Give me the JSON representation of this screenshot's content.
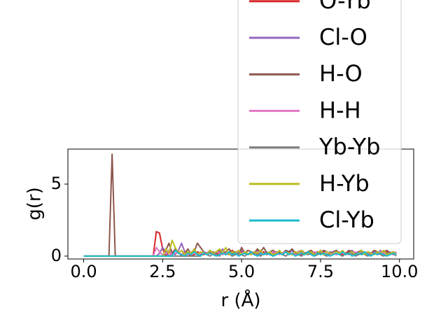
{
  "chart_data": {
    "type": "line",
    "xlabel": "r (Å)",
    "ylabel": "g(r)",
    "xlim": [
      -0.5,
      10.45
    ],
    "ylim": [
      -0.2,
      7.43
    ],
    "xticks": [
      {
        "value": 0,
        "label": "0.0"
      },
      {
        "value": 2.5,
        "label": "2.5"
      },
      {
        "value": 5,
        "label": "5.0"
      },
      {
        "value": 7.5,
        "label": "7.5"
      },
      {
        "value": 10,
        "label": "10.0"
      }
    ],
    "yticks": [
      0,
      5
    ],
    "legend": "upper right",
    "x": [
      0,
      0.1,
      0.2,
      0.3,
      0.4,
      0.5,
      0.6,
      0.7,
      0.8,
      0.9,
      1,
      1.1,
      1.2,
      1.3,
      1.4,
      1.5,
      1.6,
      1.7,
      1.8,
      1.9,
      2,
      2.1,
      2.2,
      2.3,
      2.4,
      2.5,
      2.6,
      2.7,
      2.8,
      2.9,
      3,
      3.1,
      3.2,
      3.3,
      3.4,
      3.5,
      3.6,
      3.7,
      3.8,
      3.9,
      4,
      4.1,
      4.2,
      4.3,
      4.4,
      4.5,
      4.6,
      4.7,
      4.8,
      4.9,
      5,
      5.1,
      5.2,
      5.3,
      5.4,
      5.5,
      5.6,
      5.7,
      5.8,
      5.9,
      6,
      6.1,
      6.2,
      6.3,
      6.4,
      6.5,
      6.6,
      6.7,
      6.8,
      6.9,
      7,
      7.1,
      7.2,
      7.3,
      7.4,
      7.5,
      7.6,
      7.7,
      7.8,
      7.9,
      8,
      8.1,
      8.2,
      8.3,
      8.4,
      8.5,
      8.6,
      8.7,
      8.8,
      8.9,
      9,
      9.1,
      9.2,
      9.3,
      9.4,
      9.5,
      9.6,
      9.7,
      9.8,
      9.9
    ],
    "series": [
      {
        "name": "O-Yb",
        "color": "#d62728",
        "values": [
          0,
          0,
          0,
          0,
          0,
          0,
          0,
          0,
          0,
          0,
          0,
          0,
          0,
          0,
          0,
          0,
          0,
          0,
          0,
          0,
          0,
          0,
          0,
          1.7,
          1.6,
          0.5,
          0,
          0.3,
          0.1,
          0.4,
          0.2,
          0.1,
          0.3,
          0.2,
          0,
          0.1,
          0.3,
          0.2,
          0.1,
          0.2,
          0.3,
          0.1,
          0.2,
          0.1,
          0.3,
          0.2,
          0.1,
          0.4,
          0.2,
          0.1,
          0.3,
          0.2,
          0.1,
          0.2,
          0.3,
          0.1,
          0.2,
          0.3,
          0.1,
          0.2,
          0.1,
          0.3,
          0.2,
          0.1,
          0.3,
          0.2,
          0.1,
          0.2,
          0.3,
          0.1,
          0.2,
          0.1,
          0.3,
          0.2,
          0.1,
          0.2,
          0.3,
          0.1,
          0.2,
          0.1,
          0.3,
          0.2,
          0.1,
          0.2,
          0.3,
          0.1,
          0.2,
          0.1,
          0.3,
          0.2,
          0.1,
          0.2,
          0.3,
          0.1,
          0.2,
          0.1,
          0.3,
          0.2,
          0.1,
          0.2
        ]
      },
      {
        "name": "Cl-O",
        "color": "#9467bd",
        "values": [
          0,
          0,
          0,
          0,
          0,
          0,
          0,
          0,
          0,
          0,
          0,
          0,
          0,
          0,
          0,
          0,
          0,
          0,
          0,
          0,
          0,
          0,
          0,
          0,
          0.2,
          0.6,
          0.3,
          0,
          0.2,
          0.1,
          0.4,
          0.9,
          0.3,
          0.1,
          0.2,
          0.4,
          0.2,
          0.1,
          0.3,
          0.2,
          0.4,
          0.1,
          0.3,
          0.2,
          0.5,
          0.1,
          0.3,
          0.2,
          0.1,
          0.3,
          0.4,
          0.2,
          0.1,
          0.3,
          0.2,
          0.4,
          0.1,
          0.2,
          0.3,
          0.1,
          0.2,
          0.3,
          0.2,
          0.1,
          0.3,
          0.2,
          0.4,
          0.1,
          0.2,
          0.3,
          0.2,
          0.1,
          0.3,
          0.2,
          0.1,
          0.4,
          0.2,
          0.1,
          0.3,
          0.2,
          0.1,
          0.2,
          0.3,
          0.1,
          0.2,
          0.4,
          0.1,
          0.2,
          0.3,
          0.1,
          0.2,
          0.1,
          0.3,
          0.2,
          0.4,
          0.1,
          0.2,
          0.3,
          0.1,
          0.2
        ]
      },
      {
        "name": "H-O",
        "color": "#8c564b",
        "values": [
          0,
          0,
          0,
          0,
          0,
          0,
          0,
          0,
          0,
          7.08,
          0,
          0,
          0,
          0,
          0,
          0,
          0,
          0,
          0,
          0,
          0,
          0,
          0,
          0,
          0,
          0,
          0.4,
          0.9,
          0.2,
          0.5,
          0.3,
          0,
          0.2,
          0.5,
          0.1,
          0.3,
          0.9,
          0.6,
          0.3,
          0.1,
          0.2,
          0.3,
          0.2,
          0.4,
          0.1,
          0.3,
          0.5,
          0.2,
          0.3,
          0.1,
          0.6,
          0.2,
          0.4,
          0.3,
          0.2,
          0.5,
          0.3,
          0.6,
          0.2,
          0.3,
          0.4,
          0.2,
          0.3,
          0.2,
          0.4,
          0.3,
          0.5,
          0.2,
          0.3,
          0.4,
          0.2,
          0.3,
          0.4,
          0.2,
          0.3,
          0.2,
          0.4,
          0.3,
          0.2,
          0.3,
          0.4,
          0.2,
          0.3,
          0.2,
          0.4,
          0.3,
          0.2,
          0.3,
          0.4,
          0.2,
          0.3,
          0.2,
          0.4,
          0.3,
          0.2,
          0.3,
          0.4,
          0.2,
          0.3,
          0.2
        ]
      },
      {
        "name": "H-H",
        "color": "#e377c2",
        "values": [
          0,
          0,
          0,
          0,
          0,
          0,
          0,
          0,
          0,
          0,
          0,
          0,
          0,
          0,
          0,
          0,
          0,
          0,
          0,
          0,
          0,
          0,
          0,
          0.6,
          0.3,
          0.1,
          0.2,
          0.4,
          0.1,
          0.2,
          0.3,
          0.1,
          0.2,
          0.1,
          0.3,
          0.2,
          0.1,
          0.2,
          0.3,
          0.1,
          0.2,
          0.1,
          0.3,
          0.2,
          0.1,
          0.2,
          0.1,
          0.3,
          0.2,
          0.1,
          0.2,
          0.3,
          0.1,
          0.2,
          0.1,
          0.3,
          0.2,
          0.1,
          0.2,
          0.1,
          0.3,
          0.2,
          0.1,
          0.2,
          0.3,
          0.1,
          0.2,
          0.1,
          0.3,
          0.2,
          0.1,
          0.2,
          0.1,
          0.3,
          0.2,
          0.1,
          0.2,
          0.3,
          0.1,
          0.2,
          0.1,
          0.3,
          0.2,
          0.1,
          0.2,
          0.1,
          0.3,
          0.2,
          0.1,
          0.2,
          0.3,
          0.1,
          0.2,
          0.1,
          0.3,
          0.2,
          0.1,
          0.2,
          0.1,
          0.3
        ]
      },
      {
        "name": "Yb-Yb",
        "color": "#7f7f7f",
        "values": [
          0,
          0,
          0,
          0,
          0,
          0,
          0,
          0,
          0,
          0,
          0,
          0,
          0,
          0,
          0,
          0,
          0,
          0,
          0,
          0,
          0,
          0,
          0,
          0,
          0,
          0,
          0,
          0,
          0,
          0,
          0,
          0,
          0,
          0,
          0,
          0,
          0,
          0,
          0.3,
          0.1,
          0,
          0.2,
          0.1,
          0,
          0.3,
          0.1,
          0.2,
          0,
          0.1,
          0.2,
          0.1,
          0,
          0.2,
          0.1,
          0.3,
          0.1,
          0,
          0.2,
          0.1,
          0.2,
          0,
          0.1,
          0.2,
          0.1,
          0,
          0.2,
          0.1,
          0.3,
          0.1,
          0,
          0.2,
          0.1,
          0.2,
          0,
          0.1,
          0.2,
          0.1,
          0,
          0.2,
          0.1,
          0.3,
          0.1,
          0,
          0.2,
          0.1,
          0.2,
          0,
          0.1,
          0.2,
          0.1,
          0,
          0.2,
          0.1,
          0.3,
          0.1,
          0,
          0.2,
          0.1,
          0.2,
          0
        ]
      },
      {
        "name": "H-Yb",
        "color": "#bcbd22",
        "values": [
          0,
          0,
          0,
          0,
          0,
          0,
          0,
          0,
          0,
          0,
          0,
          0,
          0,
          0,
          0,
          0,
          0,
          0,
          0,
          0,
          0,
          0,
          0,
          0,
          0,
          0,
          0.5,
          0.2,
          1.1,
          0.6,
          0.2,
          0.4,
          0.1,
          0.3,
          0.2,
          0.5,
          0.1,
          0.3,
          0.2,
          0.1,
          0.4,
          0.2,
          0.3,
          0.5,
          0.2,
          0.6,
          0.1,
          0.3,
          0.2,
          0.4,
          0.1,
          0.3,
          0.2,
          0.1,
          0.3,
          0.2,
          0.4,
          0.1,
          0.2,
          0.3,
          0.1,
          0.2,
          0.4,
          0.1,
          0.3,
          0.2,
          0.1,
          0.3,
          0.2,
          0.4,
          0.1,
          0.2,
          0.3,
          0.1,
          0.2,
          0.4,
          0.1,
          0.3,
          0.2,
          0.1,
          0.3,
          0.2,
          0.4,
          0.1,
          0.2,
          0.3,
          0.1,
          0.2,
          0.4,
          0.1,
          0.3,
          0.2,
          0.1,
          0.3,
          0.2,
          0.4,
          0.1,
          0.2,
          0.3,
          0.1
        ]
      },
      {
        "name": "Cl-Yb",
        "color": "#17becf",
        "values": [
          0,
          0,
          0,
          0,
          0,
          0,
          0,
          0,
          0,
          0,
          0,
          0,
          0,
          0,
          0,
          0,
          0,
          0,
          0,
          0,
          0,
          0,
          0,
          0,
          0,
          0,
          0,
          0,
          0,
          0.4,
          0.2,
          0.1,
          0,
          0.2,
          0.1,
          0.3,
          0.1,
          0,
          0.2,
          0.1,
          0.2,
          0.1,
          0,
          0.1,
          0.2,
          0.1,
          0.3,
          0.1,
          0.2,
          0,
          0.1,
          0.2,
          0.1,
          0.3,
          0.1,
          0,
          0.2,
          0.1,
          0.2,
          0.1,
          0,
          0.1,
          0.2,
          0.1,
          0.3,
          0.1,
          0.2,
          0,
          0.1,
          0.2,
          0.1,
          0.3,
          0.1,
          0,
          0.2,
          0.1,
          0.2,
          0.1,
          0,
          0.1,
          0.2,
          0.1,
          0.3,
          0.1,
          0.2,
          0,
          0.1,
          0.2,
          0.1,
          0.3,
          0.1,
          0,
          0.2,
          0.1,
          0.2,
          0.1,
          0,
          0.1,
          0.2,
          0.1
        ]
      }
    ]
  }
}
